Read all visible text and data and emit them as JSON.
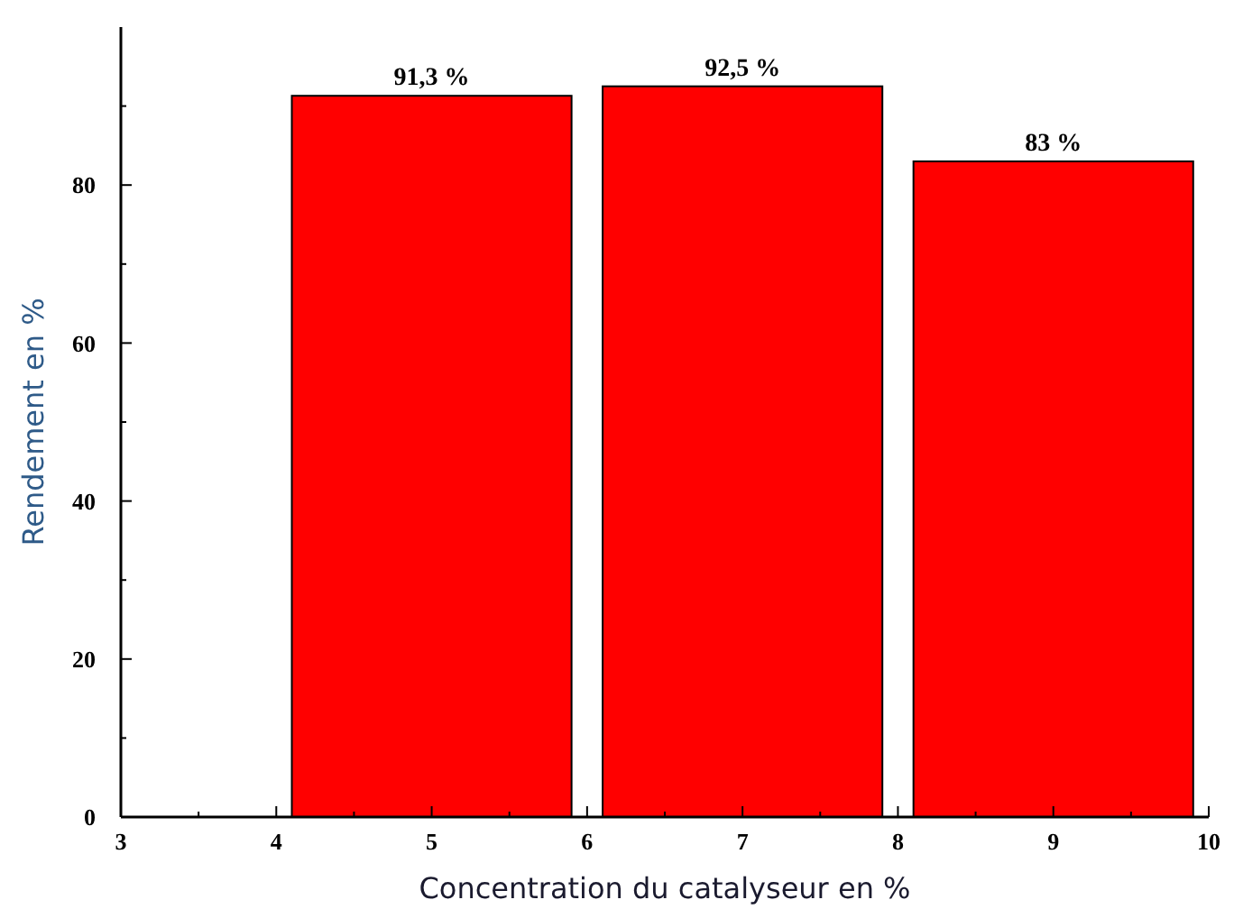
{
  "chart_data": {
    "type": "bar",
    "xlabel": "Concentration du catalyseur en %",
    "ylabel": "Rendement en %",
    "x": [
      5,
      7,
      9
    ],
    "values": [
      91.3,
      92.5,
      83
    ],
    "value_labels": [
      "91,3 %",
      "92,5 %",
      "83 %"
    ],
    "color": "#ff0000",
    "xlim": [
      3,
      10
    ],
    "xticks": [
      3,
      {
        "value": 3.5,
        "label": null
      },
      4,
      {
        "value": 4.5,
        "label": null
      },
      5,
      {
        "value": 5.5,
        "label": null
      },
      6,
      {
        "value": 6.5,
        "label": null
      },
      7,
      {
        "value": 7.5,
        "label": null
      },
      8,
      {
        "value": 8.5,
        "label": null
      },
      9,
      {
        "value": 9.5,
        "label": null
      },
      10
    ],
    "ylim": [
      0,
      100
    ],
    "yticks": [
      0,
      {
        "value": 10,
        "label": null
      },
      20,
      {
        "value": 30,
        "label": null
      },
      40,
      {
        "value": 50,
        "label": null
      },
      60,
      {
        "value": 70,
        "label": null
      },
      80,
      {
        "value": 90,
        "label": null
      }
    ]
  }
}
